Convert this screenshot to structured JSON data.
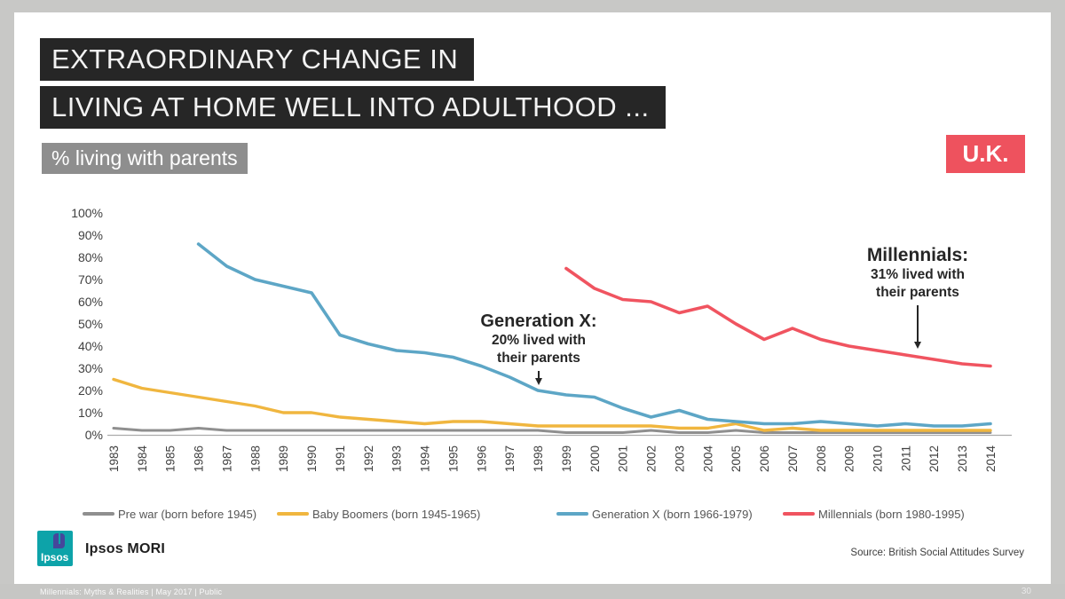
{
  "title": {
    "line1": "EXTRAORDINARY CHANGE IN",
    "line2": "LIVING AT HOME WELL INTO ADULTHOOD ..."
  },
  "subtitle": "% living with parents",
  "country_badge": "U.K.",
  "annotations": {
    "genx": {
      "title": "Generation X:",
      "line1": "20% lived with",
      "line2": "their parents"
    },
    "millennials": {
      "title": "Millennials:",
      "line1": "31% lived with",
      "line2": "their parents"
    }
  },
  "chart_data": {
    "type": "line",
    "title": "% living with parents",
    "xlabel": "",
    "ylabel": "",
    "ylim": [
      0,
      100
    ],
    "ytick_step": 10,
    "ytick_suffix": "%",
    "grid": false,
    "legend_position": "bottom",
    "years": [
      1983,
      1984,
      1985,
      1986,
      1987,
      1988,
      1989,
      1990,
      1991,
      1992,
      1993,
      1994,
      1995,
      1996,
      1997,
      1998,
      1999,
      2000,
      2001,
      2002,
      2003,
      2004,
      2005,
      2006,
      2007,
      2008,
      2009,
      2010,
      2011,
      2012,
      2013,
      2014
    ],
    "series": [
      {
        "name": "Pre war (born before 1945)",
        "color": "#8f8f8f",
        "width": 3,
        "values": [
          3,
          2,
          2,
          3,
          2,
          2,
          2,
          2,
          2,
          2,
          2,
          2,
          2,
          2,
          2,
          2,
          1,
          1,
          1,
          2,
          1,
          1,
          2,
          1,
          1,
          1,
          1,
          1,
          1,
          1,
          1,
          1
        ]
      },
      {
        "name": "Baby Boomers (born 1945-1965)",
        "color": "#f0b63f",
        "width": 3.4,
        "values": [
          25,
          21,
          19,
          17,
          15,
          13,
          10,
          10,
          8,
          7,
          6,
          5,
          6,
          6,
          5,
          4,
          4,
          4,
          4,
          4,
          3,
          3,
          5,
          2,
          3,
          2,
          2,
          2,
          2,
          2,
          2,
          2
        ]
      },
      {
        "name": "Generation X (born 1966-1979)",
        "color": "#5da6c6",
        "width": 3.6,
        "values": [
          null,
          null,
          null,
          86,
          76,
          70,
          67,
          64,
          45,
          41,
          38,
          37,
          35,
          31,
          26,
          20,
          18,
          17,
          12,
          8,
          11,
          7,
          6,
          5,
          5,
          6,
          5,
          4,
          5,
          4,
          4,
          5
        ]
      },
      {
        "name": "Millennials (born 1980-1995)",
        "color": "#f05460",
        "width": 3.6,
        "values": [
          null,
          null,
          null,
          null,
          null,
          null,
          null,
          null,
          null,
          null,
          null,
          null,
          null,
          null,
          null,
          null,
          75,
          66,
          61,
          60,
          55,
          58,
          50,
          43,
          48,
          43,
          40,
          38,
          36,
          34,
          32,
          31
        ]
      }
    ]
  },
  "footer": {
    "brand": "Ipsos MORI",
    "logo_text": "Ipsos",
    "source": "Source:  British Social Attitudes Survey"
  },
  "bottom_bar": {
    "deck_title": "Millennials:  Myths & Realities  | May 2017 | Public",
    "page_number": "30"
  }
}
